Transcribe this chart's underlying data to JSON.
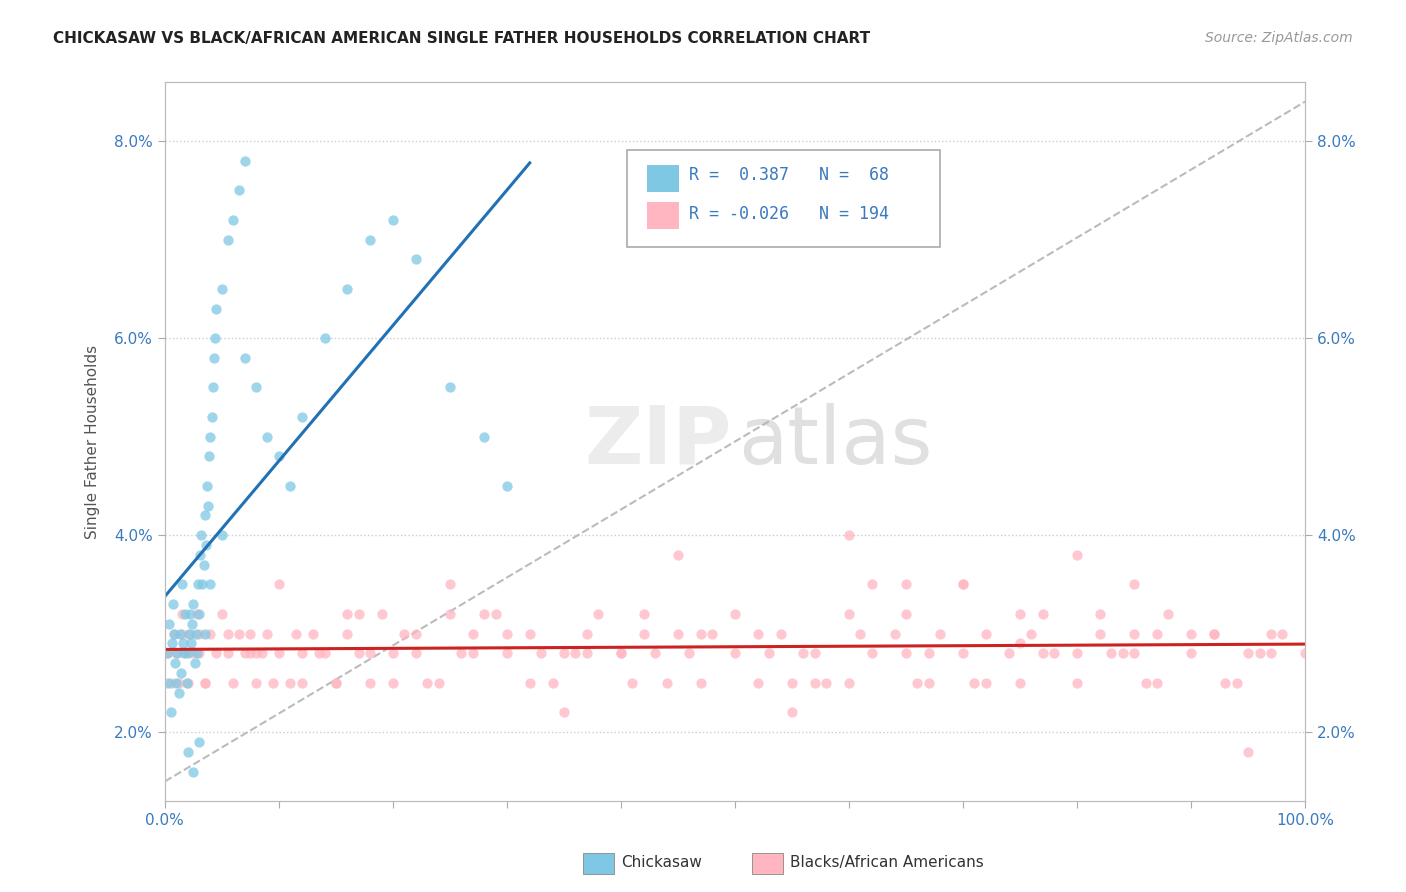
{
  "title": "CHICKASAW VS BLACK/AFRICAN AMERICAN SINGLE FATHER HOUSEHOLDS CORRELATION CHART",
  "source": "Source: ZipAtlas.com",
  "ylabel": "Single Father Households",
  "xlim": [
    0,
    100
  ],
  "ylim": [
    1.3,
    8.6
  ],
  "color_blue": "#7ec8e3",
  "color_pink": "#ffb6c1",
  "color_blue_dark": "#2171b5",
  "color_red": "#cc2222",
  "chickasaw_x": [
    0.2,
    0.3,
    0.4,
    0.5,
    0.6,
    0.7,
    0.8,
    0.9,
    1.0,
    1.1,
    1.2,
    1.3,
    1.4,
    1.5,
    1.6,
    1.7,
    1.8,
    1.9,
    2.0,
    2.1,
    2.2,
    2.3,
    2.4,
    2.5,
    2.6,
    2.7,
    2.8,
    2.9,
    3.0,
    3.1,
    3.2,
    3.3,
    3.4,
    3.5,
    3.6,
    3.7,
    3.8,
    3.9,
    4.0,
    4.1,
    4.2,
    4.3,
    4.4,
    4.5,
    5.0,
    5.5,
    6.0,
    6.5,
    7.0,
    8.0,
    9.0,
    10.0,
    11.0,
    12.0,
    14.0,
    16.0,
    18.0,
    20.0,
    22.0,
    25.0,
    28.0,
    30.0,
    3.5,
    4.0,
    5.0,
    7.0,
    2.0,
    2.5,
    3.0
  ],
  "chickasaw_y": [
    2.8,
    2.5,
    3.1,
    2.2,
    2.9,
    3.3,
    3.0,
    2.7,
    2.5,
    2.8,
    2.4,
    3.0,
    2.6,
    3.5,
    2.9,
    2.8,
    3.2,
    2.5,
    2.8,
    3.0,
    3.2,
    2.9,
    3.1,
    3.3,
    2.7,
    3.0,
    2.8,
    3.5,
    3.2,
    3.8,
    4.0,
    3.5,
    3.7,
    4.2,
    3.9,
    4.5,
    4.3,
    4.8,
    5.0,
    5.2,
    5.5,
    5.8,
    6.0,
    6.3,
    6.5,
    7.0,
    7.2,
    7.5,
    7.8,
    5.5,
    5.0,
    4.8,
    4.5,
    5.2,
    6.0,
    6.5,
    7.0,
    7.2,
    6.8,
    5.5,
    5.0,
    4.5,
    3.0,
    3.5,
    4.0,
    5.8,
    1.8,
    1.6,
    1.9
  ],
  "black_x": [
    0.3,
    0.5,
    0.8,
    1.0,
    1.2,
    1.5,
    1.8,
    2.0,
    2.2,
    2.5,
    2.8,
    3.0,
    3.5,
    4.0,
    4.5,
    5.0,
    5.5,
    6.0,
    6.5,
    7.0,
    7.5,
    8.0,
    8.5,
    9.0,
    10.0,
    11.0,
    12.0,
    13.0,
    14.0,
    15.0,
    16.0,
    17.0,
    18.0,
    19.0,
    20.0,
    22.0,
    24.0,
    26.0,
    28.0,
    30.0,
    32.0,
    34.0,
    36.0,
    38.0,
    40.0,
    42.0,
    44.0,
    46.0,
    48.0,
    50.0,
    52.0,
    54.0,
    56.0,
    58.0,
    60.0,
    62.0,
    64.0,
    66.0,
    68.0,
    70.0,
    72.0,
    74.0,
    76.0,
    78.0,
    80.0,
    82.0,
    84.0,
    86.0,
    88.0,
    90.0,
    92.0,
    94.0,
    96.0,
    98.0,
    100.0,
    25.0,
    35.0,
    45.0,
    55.0,
    65.0,
    75.0,
    85.0,
    95.0,
    10.0,
    20.0,
    30.0,
    40.0,
    50.0,
    60.0,
    70.0,
    80.0,
    90.0,
    15.0,
    25.0,
    35.0,
    45.0,
    55.0,
    65.0,
    75.0,
    85.0,
    1.5,
    3.5,
    5.5,
    7.5,
    9.5,
    11.5,
    13.5,
    16.0,
    18.0,
    21.0,
    23.0,
    27.0,
    29.0,
    33.0,
    37.0,
    41.0,
    43.0,
    47.0,
    53.0,
    57.0,
    61.0,
    67.0,
    71.0,
    77.0,
    83.0,
    87.0,
    93.0,
    97.0,
    3.0,
    8.0,
    12.0,
    17.0,
    22.0,
    27.0,
    32.0,
    37.0,
    42.0,
    47.0,
    52.0,
    57.0,
    62.0,
    67.0,
    72.0,
    77.0,
    82.0,
    87.0,
    92.0,
    97.0,
    60.0,
    70.0,
    80.0,
    85.0,
    95.0,
    65.0,
    75.0
  ],
  "black_y": [
    2.8,
    2.5,
    3.0,
    2.8,
    2.5,
    3.2,
    2.8,
    2.5,
    3.0,
    2.8,
    3.2,
    2.8,
    2.5,
    3.0,
    2.8,
    3.2,
    2.8,
    2.5,
    3.0,
    2.8,
    3.0,
    2.5,
    2.8,
    3.0,
    2.8,
    2.5,
    2.8,
    3.0,
    2.8,
    2.5,
    3.0,
    2.8,
    2.5,
    3.2,
    2.8,
    3.0,
    2.5,
    2.8,
    3.2,
    2.8,
    3.0,
    2.5,
    2.8,
    3.2,
    2.8,
    3.0,
    2.5,
    2.8,
    3.0,
    2.8,
    2.5,
    3.0,
    2.8,
    2.5,
    3.2,
    2.8,
    3.0,
    2.5,
    3.0,
    2.8,
    2.5,
    2.8,
    3.0,
    2.8,
    2.5,
    3.0,
    2.8,
    2.5,
    3.2,
    2.8,
    3.0,
    2.5,
    2.8,
    3.0,
    2.8,
    3.5,
    2.2,
    3.8,
    2.2,
    3.5,
    2.5,
    3.0,
    2.8,
    3.5,
    2.5,
    3.0,
    2.8,
    3.2,
    2.5,
    3.5,
    2.8,
    3.0,
    2.5,
    3.2,
    2.8,
    3.0,
    2.5,
    2.8,
    3.2,
    2.8,
    3.0,
    2.5,
    3.0,
    2.8,
    2.5,
    3.0,
    2.8,
    3.2,
    2.8,
    3.0,
    2.5,
    2.8,
    3.2,
    2.8,
    3.0,
    2.5,
    2.8,
    3.0,
    2.8,
    2.5,
    3.0,
    2.8,
    2.5,
    3.2,
    2.8,
    3.0,
    2.5,
    3.0,
    3.0,
    2.8,
    2.5,
    3.2,
    2.8,
    3.0,
    2.5,
    2.8,
    3.2,
    2.5,
    3.0,
    2.8,
    3.5,
    2.5,
    3.0,
    2.8,
    3.2,
    2.5,
    3.0,
    2.8,
    4.0,
    3.5,
    3.8,
    3.5,
    1.8,
    3.2,
    2.9
  ]
}
